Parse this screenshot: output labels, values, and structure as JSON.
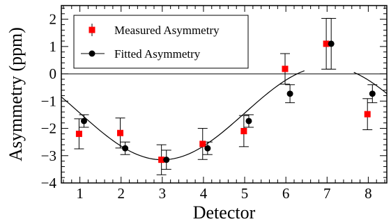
{
  "chart_data": {
    "type": "scatter",
    "title": "",
    "xlabel": "Detector",
    "ylabel": "Asymmetry (ppm)",
    "xlim": [
      0.55,
      8.45
    ],
    "ylim": [
      -4,
      2.5
    ],
    "xticks": [
      1,
      2,
      3,
      4,
      5,
      6,
      7,
      8
    ],
    "yticks": [
      -4,
      -3,
      -2,
      -1,
      0,
      1,
      2
    ],
    "zero_line": true,
    "grid": false,
    "legend_position": "top-left",
    "series": [
      {
        "name": "Measured Asymmetry",
        "marker": "square",
        "color": "#ff0000",
        "x": [
          0.98,
          1.98,
          2.98,
          3.98,
          4.98,
          5.98,
          6.98,
          7.98
        ],
        "y": [
          -2.2,
          -2.17,
          -3.15,
          -2.57,
          -2.1,
          0.18,
          1.1,
          -1.48
        ],
        "yerr": [
          0.55,
          0.55,
          0.55,
          0.57,
          0.57,
          0.56,
          0.93,
          0.57
        ]
      },
      {
        "name": "Fitted Asymmetry",
        "marker": "circle",
        "color": "#000000",
        "x": [
          1.1,
          2.1,
          3.1,
          4.1,
          5.1,
          6.1,
          7.1,
          8.1
        ],
        "y": [
          -1.73,
          -2.73,
          -3.15,
          -2.73,
          -1.73,
          -0.73,
          1.1,
          -0.73
        ],
        "yerr": [
          0.23,
          0.23,
          0.35,
          0.23,
          0.23,
          0.33,
          0.93,
          0.33
        ]
      }
    ],
    "fit_curve": {
      "color": "#000000",
      "model": "A + B*cos(2*pi*(x-3)/8)",
      "A": -1.44,
      "B": -1.71,
      "segments": [
        [
          0.55,
          6.45
        ],
        [
          7.65,
          8.45
        ]
      ]
    }
  }
}
